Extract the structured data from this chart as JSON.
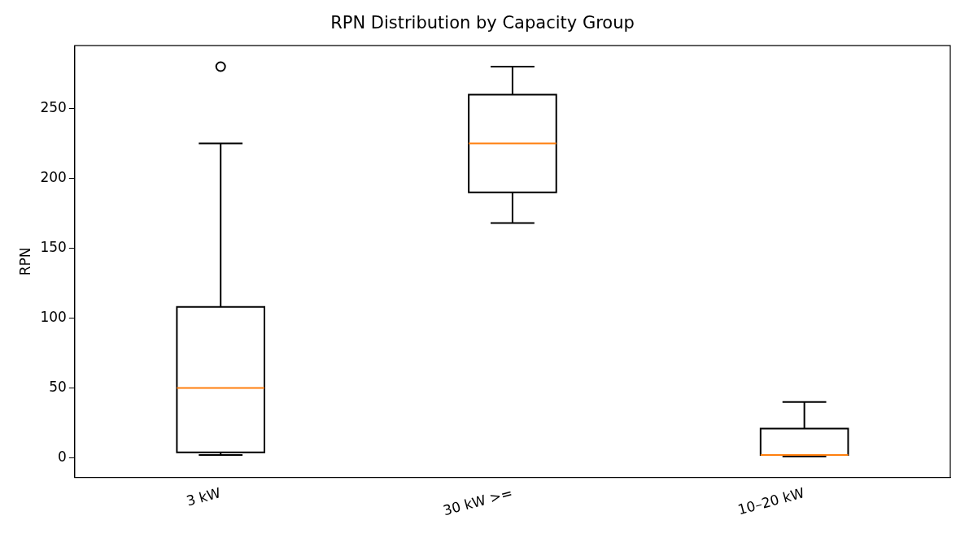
{
  "chart_data": {
    "type": "box",
    "title": "RPN Distribution by Capacity Group",
    "ylabel": "RPN",
    "categories": [
      "3 kW",
      "30 kW >=",
      "10–20 kW"
    ],
    "boxes": [
      {
        "low": 2,
        "q1": 4,
        "median": 50,
        "q3": 108,
        "high": 225,
        "outliers": [
          280
        ]
      },
      {
        "low": 168,
        "q1": 190,
        "median": 225,
        "q3": 260,
        "high": 280
      },
      {
        "low": 1,
        "q1": 2,
        "median": 2,
        "q3": 21,
        "high": 40
      }
    ],
    "color": "#000000",
    "ylim": [
      -14,
      295
    ],
    "yticks": [
      0,
      50,
      100,
      150,
      200,
      250
    ],
    "grid": false,
    "legend": false,
    "marker": "circle"
  }
}
